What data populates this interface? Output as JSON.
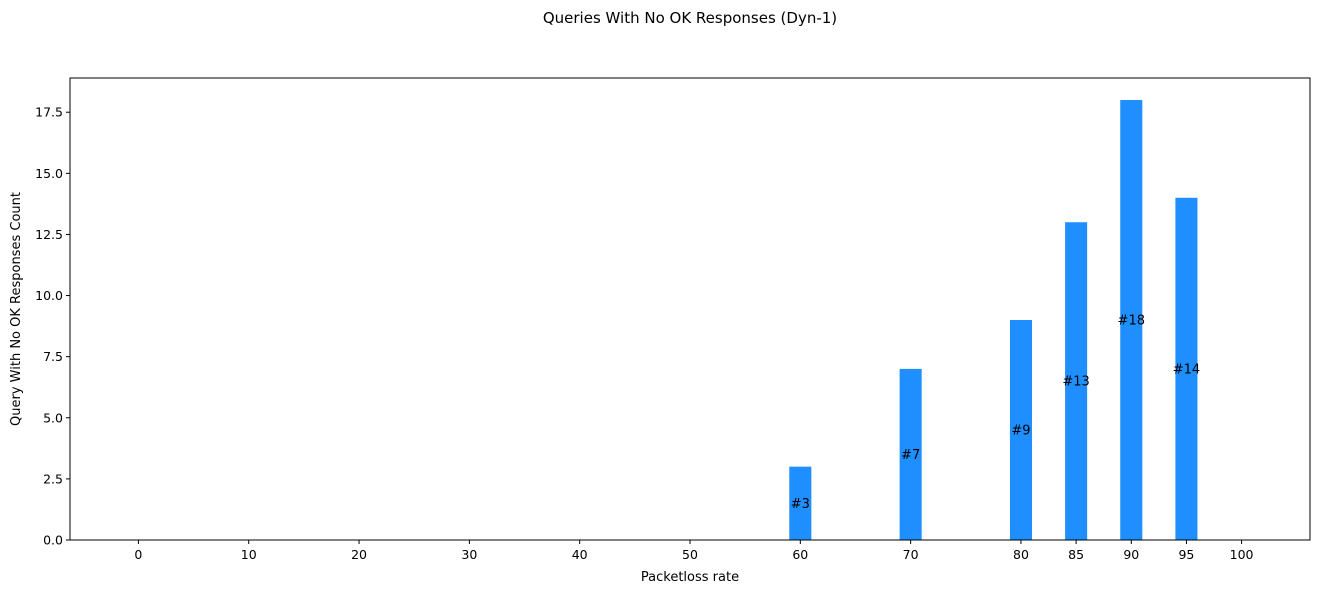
{
  "chart_data": {
    "type": "bar",
    "title": "Queries With No OK Responses (Dyn-1)",
    "xlabel": "Packetloss rate",
    "ylabel": "Query With No OK Responses Count",
    "x_ticks": [
      0,
      10,
      20,
      30,
      40,
      50,
      60,
      70,
      80,
      85,
      90,
      95,
      100
    ],
    "x_tick_labels": [
      "0",
      "10",
      "20",
      "30",
      "40",
      "50",
      "60",
      "70",
      "80",
      "85",
      "90",
      "95",
      "100"
    ],
    "y_ticks": [
      0,
      2.5,
      5,
      7.5,
      10,
      12.5,
      15,
      17.5
    ],
    "y_tick_labels": [
      "0.0",
      "2.5",
      "5.0",
      "7.5",
      "10.0",
      "12.5",
      "15.0",
      "17.5"
    ],
    "xlim": [
      -6.2,
      106.2
    ],
    "ylim": [
      0,
      18.9
    ],
    "bar_width": 2,
    "x": [
      60,
      70,
      80,
      85,
      90,
      95
    ],
    "values": [
      3,
      7,
      9,
      13,
      18,
      14
    ],
    "data_labels": [
      "#3",
      "#7",
      "#9",
      "#13",
      "#18",
      "#14"
    ],
    "bar_color": "#1f8fff",
    "grid": false,
    "legend": false
  }
}
